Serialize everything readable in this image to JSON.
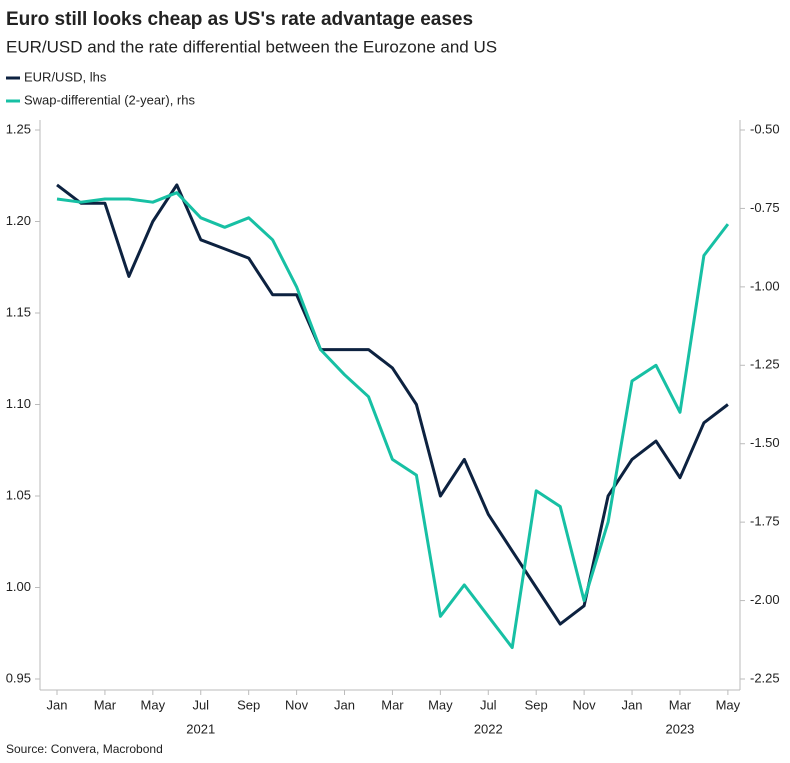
{
  "chart_data": {
    "type": "line",
    "title": "Euro still looks cheap as US's rate advantage eases",
    "subtitle": "EUR/USD and the rate differential between the Eurozone and US",
    "source": "Source: Convera, Macrobond",
    "x": [
      "2021-01",
      "2021-02",
      "2021-03",
      "2021-04",
      "2021-05",
      "2021-06",
      "2021-07",
      "2021-08",
      "2021-09",
      "2021-10",
      "2021-11",
      "2021-12",
      "2022-01",
      "2022-02",
      "2022-03",
      "2022-04",
      "2022-05",
      "2022-06",
      "2022-07",
      "2022-08",
      "2022-09",
      "2022-10",
      "2022-11",
      "2022-12",
      "2023-01",
      "2023-02",
      "2023-03",
      "2023-04",
      "2023-05"
    ],
    "series": [
      {
        "name": "EUR/USD, lhs",
        "color": "#0d2240",
        "axis": "y",
        "values": [
          1.22,
          1.21,
          1.21,
          1.17,
          1.2,
          1.22,
          1.19,
          1.185,
          1.18,
          1.16,
          1.16,
          1.13,
          1.13,
          1.13,
          1.12,
          1.1,
          1.05,
          1.07,
          1.04,
          1.02,
          1.0,
          0.98,
          0.99,
          1.05,
          1.07,
          1.08,
          1.06,
          1.09,
          1.1
        ]
      },
      {
        "name": "Swap-differential (2-year), rhs",
        "color": "#17c0a4",
        "axis": "y2",
        "values": [
          -0.72,
          -0.73,
          -0.72,
          -0.72,
          -0.73,
          -0.7,
          -0.78,
          -0.81,
          -0.78,
          -0.85,
          -1.0,
          -1.2,
          -1.28,
          -1.35,
          -1.55,
          -1.6,
          -2.05,
          -1.95,
          -2.05,
          -2.15,
          -1.65,
          -1.7,
          -2.0,
          -1.75,
          -1.3,
          -1.25,
          -1.4,
          -0.9,
          -0.8
        ]
      }
    ],
    "ylim": [
      0.95,
      1.25
    ],
    "yticks": [
      0.95,
      {
        "value": 1.0,
        "label": "1.00"
      },
      1.05,
      {
        "value": 1.1,
        "label": "1.10"
      },
      1.15,
      {
        "value": 1.2,
        "label": "1.20"
      },
      1.25
    ],
    "y2lim": [
      -2.25,
      -0.5
    ],
    "y2ticks": [
      {
        "value": -2.25,
        "label": "-2.25"
      },
      {
        "value": -2.0,
        "label": "-2.00"
      },
      {
        "value": -1.75,
        "label": "-1.75"
      },
      {
        "value": -1.5,
        "label": "-1.50"
      },
      {
        "value": -1.25,
        "label": "-1.25"
      },
      {
        "value": -1.0,
        "label": "-1.00"
      },
      {
        "value": -0.75,
        "label": "-0.75"
      },
      {
        "value": -0.5,
        "label": "-0.50"
      }
    ],
    "xticks": [
      {
        "value": "2021-01",
        "label": "Jan"
      },
      {
        "value": "2021-03",
        "label": "Mar"
      },
      {
        "value": "2021-05",
        "label": "May"
      },
      {
        "value": "2021-07",
        "label": "Jul"
      },
      {
        "value": "2021-09",
        "label": "Sep"
      },
      {
        "value": "2021-11",
        "label": "Nov"
      },
      {
        "value": "2022-01",
        "label": "Jan"
      },
      {
        "value": "2022-03",
        "label": "Mar"
      },
      {
        "value": "2022-05",
        "label": "May"
      },
      {
        "value": "2022-07",
        "label": "Jul"
      },
      {
        "value": "2022-09",
        "label": "Sep"
      },
      {
        "value": "2022-11",
        "label": "Nov"
      },
      {
        "value": "2023-01",
        "label": "Jan"
      },
      {
        "value": "2023-03",
        "label": "Mar"
      },
      {
        "value": "2023-05",
        "label": "May"
      }
    ],
    "year_labels": [
      {
        "value": "2021-07",
        "label": "2021"
      },
      {
        "value": "2022-07",
        "label": "2022"
      },
      {
        "value": "2023-03",
        "label": "2023"
      }
    ],
    "grid": false
  }
}
